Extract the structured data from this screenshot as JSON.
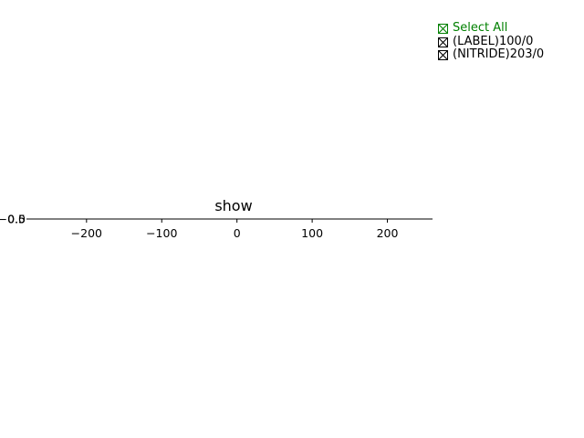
{
  "title": "show",
  "legend": {
    "select_all": {
      "label": "Select All",
      "color": "#008000",
      "checked": true
    },
    "items": [
      {
        "label": "(LABEL)100/0",
        "color": "#000000",
        "checked": true
      },
      {
        "label": "(NITRIDE)203/0",
        "color": "#000000",
        "checked": true
      }
    ]
  },
  "chart_data": {
    "type": "line",
    "title": "show",
    "xlabel": "",
    "ylabel": "",
    "xlim": [
      -275,
      260
    ],
    "xticks": [
      -200,
      -100,
      0,
      100,
      200
    ],
    "xtick_labels": [
      "−200",
      "−100",
      "0",
      "100",
      "200"
    ],
    "ytick_labels": [
      "−0.5",
      "0.0",
      "0.5"
    ],
    "series": [],
    "grid": false,
    "legend_position": "top-right"
  }
}
